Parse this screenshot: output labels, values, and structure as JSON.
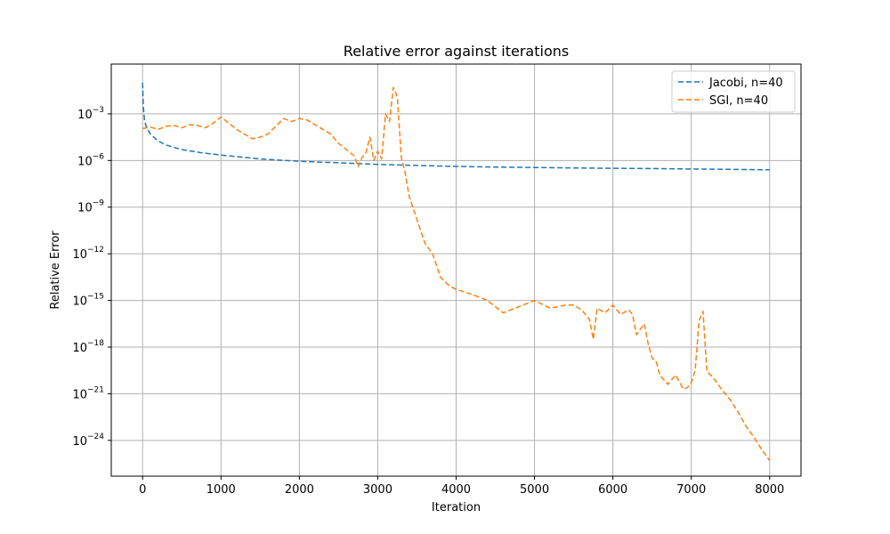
{
  "chart_data": {
    "type": "line",
    "title": "Relative error against iterations",
    "xlabel": "Iteration",
    "ylabel": "Relative Error",
    "yscale": "log",
    "xlim": [
      -400,
      8400
    ],
    "ylim_exponent": [
      -26.3,
      0.2
    ],
    "xticks": [
      0,
      1000,
      2000,
      3000,
      4000,
      5000,
      6000,
      7000,
      8000
    ],
    "xtick_labels": [
      "0",
      "1000",
      "2000",
      "3000",
      "4000",
      "5000",
      "6000",
      "7000",
      "8000"
    ],
    "yticks_exponent": [
      -24,
      -21,
      -18,
      -15,
      -12,
      -9,
      -6,
      -3
    ],
    "ytick_labels": [
      "10",
      "10",
      "10",
      "10",
      "10",
      "10",
      "10",
      "10"
    ],
    "ytick_exponent_labels": [
      "−24",
      "−21",
      "−18",
      "−15",
      "−12",
      "−9",
      "−6",
      "−3"
    ],
    "grid": true,
    "legend": "top-right",
    "series": [
      {
        "name": "Jacobi, n=40",
        "color": "#1f77b4",
        "style": "dashed",
        "x": [
          0,
          10,
          25,
          50,
          100,
          200,
          300,
          500,
          750,
          1000,
          1500,
          2000,
          2500,
          3000,
          3500,
          4000,
          4500,
          5000,
          5500,
          6000,
          6500,
          7000,
          7500,
          8000
        ],
        "log10_y": [
          -1.0,
          -2.6,
          -3.4,
          -3.9,
          -4.3,
          -4.75,
          -5.0,
          -5.3,
          -5.5,
          -5.65,
          -5.9,
          -6.05,
          -6.15,
          -6.25,
          -6.32,
          -6.38,
          -6.42,
          -6.45,
          -6.48,
          -6.5,
          -6.52,
          -6.55,
          -6.57,
          -6.6
        ]
      },
      {
        "name": "SGI, n=40",
        "color": "#ff7f0e",
        "style": "dashed",
        "x": [
          0,
          100,
          200,
          300,
          400,
          500,
          600,
          700,
          800,
          900,
          1000,
          1100,
          1200,
          1300,
          1400,
          1500,
          1600,
          1700,
          1800,
          1900,
          2000,
          2100,
          2200,
          2300,
          2400,
          2500,
          2600,
          2700,
          2750,
          2800,
          2850,
          2900,
          2950,
          3000,
          3050,
          3100,
          3150,
          3200,
          3250,
          3300,
          3350,
          3400,
          3500,
          3600,
          3700,
          3800,
          3900,
          4000,
          4200,
          4400,
          4600,
          4800,
          5000,
          5200,
          5400,
          5500,
          5600,
          5700,
          5750,
          5800,
          5900,
          6000,
          6100,
          6200,
          6250,
          6300,
          6400,
          6450,
          6500,
          6550,
          6600,
          6700,
          6800,
          6900,
          6950,
          7000,
          7050,
          7100,
          7150,
          7200,
          7250,
          7300,
          7400,
          7500,
          7600,
          7700,
          7800,
          7900,
          8000
        ],
        "log10_y": [
          -3.95,
          -3.85,
          -4.0,
          -3.8,
          -3.75,
          -3.9,
          -3.7,
          -3.75,
          -3.9,
          -3.6,
          -3.2,
          -3.6,
          -4.0,
          -4.3,
          -4.6,
          -4.5,
          -4.3,
          -3.8,
          -3.3,
          -3.5,
          -3.3,
          -3.4,
          -3.7,
          -4.0,
          -4.3,
          -4.9,
          -5.3,
          -5.7,
          -6.4,
          -5.8,
          -5.5,
          -4.5,
          -6.0,
          -5.4,
          -5.9,
          -3.0,
          -3.5,
          -1.3,
          -1.9,
          -5.8,
          -6.8,
          -8.3,
          -9.8,
          -11.3,
          -12.0,
          -13.5,
          -14.0,
          -14.3,
          -14.6,
          -15.0,
          -15.8,
          -15.4,
          -15.0,
          -15.5,
          -15.3,
          -15.3,
          -15.6,
          -16.2,
          -17.5,
          -15.5,
          -15.8,
          -15.3,
          -15.9,
          -15.6,
          -15.9,
          -17.2,
          -16.5,
          -17.8,
          -18.7,
          -18.9,
          -19.8,
          -20.4,
          -19.8,
          -20.7,
          -20.6,
          -20.3,
          -19.5,
          -16.3,
          -15.7,
          -19.6,
          -19.8,
          -20.1,
          -20.8,
          -21.4,
          -22.2,
          -23.1,
          -23.8,
          -24.6,
          -25.3
        ]
      }
    ]
  }
}
